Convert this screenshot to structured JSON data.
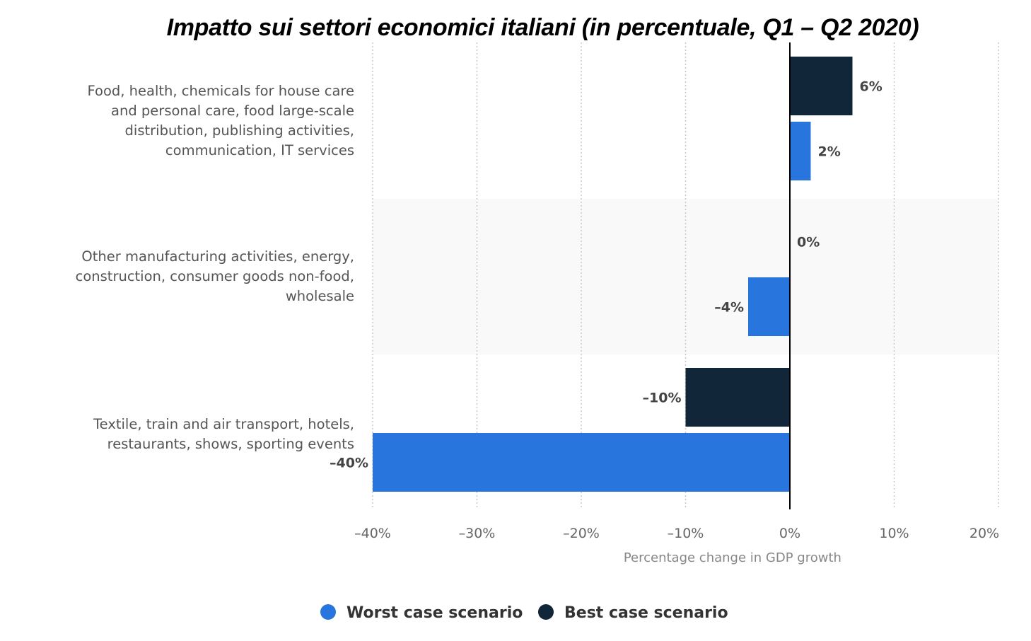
{
  "chart_data": {
    "type": "bar",
    "orientation": "horizontal",
    "title": "Impatto sui settori economici italiani (in percentuale, Q1 – Q2 2020)",
    "xlabel": "Percentage change in GDP growth",
    "ylabel": "",
    "xlim": [
      -40,
      20
    ],
    "xticks": [
      -40,
      -30,
      -20,
      -10,
      0,
      10,
      20
    ],
    "xtick_labels": [
      "–40%",
      "–30%",
      "–20%",
      "–10%",
      "0%",
      "10%",
      "20%"
    ],
    "grid": "vertical dotted",
    "legend_position": "bottom",
    "categories": [
      [
        "Food, health, chemicals for house care",
        "and personal care, food large-scale",
        "distribution, publishing activities,",
        "communication, IT services"
      ],
      [
        "Other manufacturing activities, energy,",
        "construction, consumer goods non-food,",
        "wholesale"
      ],
      [
        "Textile, train and air transport, hotels,",
        "restaurants, shows, sporting events"
      ]
    ],
    "series": [
      {
        "name": "Best case scenario",
        "color": "#12263a",
        "values": [
          6,
          0,
          -10
        ],
        "labels": [
          "6%",
          "0%",
          "–10%"
        ]
      },
      {
        "name": "Worst case scenario",
        "color": "#2876dd",
        "values": [
          2,
          -4,
          -40
        ],
        "labels": [
          "2%",
          "–4%",
          "–40%"
        ]
      }
    ],
    "legend_order": [
      "Worst case scenario",
      "Best case scenario"
    ]
  }
}
